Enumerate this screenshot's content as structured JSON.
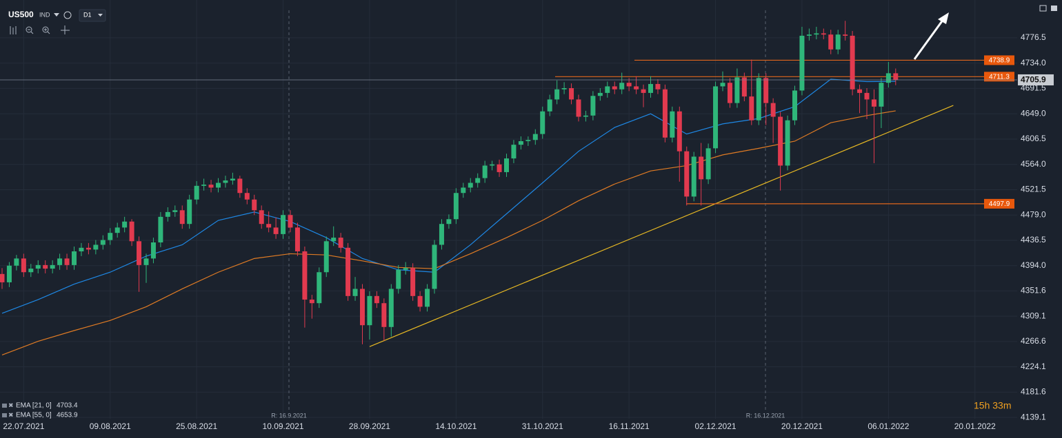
{
  "header": {
    "symbol": "US500",
    "market": "IND",
    "timeframe": "D1"
  },
  "timer": "15h 33m",
  "chart_data": {
    "type": "candlestick",
    "up_color": "#2fb67a",
    "down_color": "#e23a4f",
    "ylim": [
      4137,
      4840
    ],
    "yticks": [
      4776.5,
      {
        "value": 4734,
        "label": "4734.0"
      },
      4691.5,
      {
        "value": 4649,
        "label": "4649.0"
      },
      4606.5,
      {
        "value": 4564,
        "label": "4564.0"
      },
      4521.5,
      {
        "value": 4479,
        "label": "4479.0"
      },
      4436.5,
      {
        "value": 4394,
        "label": "4394.0"
      },
      4351.6,
      4309.1,
      4266.6,
      4224.1,
      4181.6,
      4139.1
    ],
    "x_labels": [
      "22.07.2021",
      "09.08.2021",
      "25.08.2021",
      "10.09.2021",
      "28.09.2021",
      "14.10.2021",
      "31.10.2021",
      "16.11.2021",
      "02.12.2021",
      "20.12.2021",
      "06.01.2022",
      "20.01.2022"
    ],
    "markers": [
      "R: 16.9.2021",
      "R: 16.12.2021"
    ],
    "candles": [
      [
        4380,
        4390,
        4355,
        4366
      ],
      [
        4366,
        4400,
        4358,
        4394
      ],
      [
        4394,
        4412,
        4386,
        4406
      ],
      [
        4406,
        4414,
        4375,
        4383
      ],
      [
        4383,
        4397,
        4375,
        4389
      ],
      [
        4389,
        4403,
        4381,
        4395
      ],
      [
        4395,
        4403,
        4381,
        4389
      ],
      [
        4389,
        4403,
        4381,
        4395
      ],
      [
        4395,
        4414,
        4387,
        4406
      ],
      [
        4406,
        4414,
        4387,
        4395
      ],
      [
        4395,
        4426,
        4387,
        4418
      ],
      [
        4418,
        4432,
        4410,
        4424
      ],
      [
        4424,
        4432,
        4413,
        4421
      ],
      [
        4421,
        4437,
        4413,
        4429
      ],
      [
        4429,
        4445,
        4421,
        4437
      ],
      [
        4437,
        4457,
        4429,
        4449
      ],
      [
        4449,
        4466,
        4441,
        4458
      ],
      [
        4458,
        4476,
        4450,
        4468
      ],
      [
        4468,
        4472,
        4427,
        4435
      ],
      [
        4435,
        4443,
        4350,
        4395
      ],
      [
        4395,
        4414,
        4365,
        4406
      ],
      [
        4406,
        4441,
        4398,
        4433
      ],
      [
        4433,
        4484,
        4425,
        4476
      ],
      [
        4476,
        4492,
        4468,
        4484
      ],
      [
        4484,
        4495,
        4476,
        4487
      ],
      [
        4487,
        4495,
        4456,
        4464
      ],
      [
        4464,
        4513,
        4456,
        4505
      ],
      [
        4505,
        4536,
        4497,
        4528
      ],
      [
        4528,
        4540,
        4520,
        4530
      ],
      [
        4530,
        4538,
        4517,
        4525
      ],
      [
        4525,
        4541,
        4517,
        4533
      ],
      [
        4533,
        4545,
        4525,
        4537
      ],
      [
        4537,
        4550,
        4530,
        4540
      ],
      [
        4540,
        4545,
        4508,
        4516
      ],
      [
        4516,
        4524,
        4497,
        4505
      ],
      [
        4505,
        4513,
        4479,
        4487
      ],
      [
        4487,
        4495,
        4456,
        4464
      ],
      [
        4464,
        4485,
        4450,
        4458
      ],
      [
        4458,
        4475,
        4439,
        4447
      ],
      [
        4447,
        4487,
        4439,
        4479
      ],
      [
        4479,
        4487,
        4450,
        4458
      ],
      [
        4458,
        4466,
        4410,
        4418
      ],
      [
        4418,
        4426,
        4290,
        4337
      ],
      [
        4337,
        4345,
        4305,
        4331
      ],
      [
        4331,
        4391,
        4323,
        4383
      ],
      [
        4383,
        4443,
        4375,
        4435
      ],
      [
        4435,
        4460,
        4427,
        4441
      ],
      [
        4441,
        4449,
        4416,
        4424
      ],
      [
        4424,
        4432,
        4335,
        4343
      ],
      [
        4343,
        4375,
        4335,
        4355
      ],
      [
        4355,
        4363,
        4262,
        4294
      ],
      [
        4294,
        4351,
        4270,
        4343
      ],
      [
        4343,
        4351,
        4323,
        4331
      ],
      [
        4331,
        4339,
        4268,
        4291
      ],
      [
        4291,
        4363,
        4275,
        4355
      ],
      [
        4355,
        4395,
        4347,
        4387
      ],
      [
        4387,
        4400,
        4379,
        4390
      ],
      [
        4390,
        4398,
        4335,
        4343
      ],
      [
        4343,
        4351,
        4317,
        4325
      ],
      [
        4325,
        4363,
        4317,
        4355
      ],
      [
        4355,
        4437,
        4347,
        4429
      ],
      [
        4429,
        4472,
        4421,
        4464
      ],
      [
        4464,
        4480,
        4456,
        4472
      ],
      [
        4472,
        4524,
        4464,
        4516
      ],
      [
        4516,
        4533,
        4508,
        4525
      ],
      [
        4525,
        4541,
        4517,
        4533
      ],
      [
        4533,
        4549,
        4525,
        4541
      ],
      [
        4541,
        4570,
        4533,
        4562
      ],
      [
        4562,
        4570,
        4554,
        4564
      ],
      [
        4564,
        4572,
        4543,
        4551
      ],
      [
        4551,
        4582,
        4543,
        4574
      ],
      [
        4574,
        4605,
        4566,
        4597
      ],
      [
        4597,
        4611,
        4589,
        4603
      ],
      [
        4603,
        4611,
        4595,
        4605
      ],
      [
        4605,
        4623,
        4597,
        4615
      ],
      [
        4615,
        4661,
        4607,
        4653
      ],
      [
        4653,
        4681,
        4645,
        4673
      ],
      [
        4673,
        4705,
        4665,
        4690
      ],
      [
        4690,
        4702,
        4682,
        4692
      ],
      [
        4692,
        4700,
        4665,
        4673
      ],
      [
        4673,
        4681,
        4636,
        4644
      ],
      [
        4644,
        4654,
        4636,
        4646
      ],
      [
        4646,
        4687,
        4638,
        4679
      ],
      [
        4679,
        4692,
        4671,
        4684
      ],
      [
        4684,
        4703,
        4676,
        4695
      ],
      [
        4695,
        4703,
        4682,
        4690
      ],
      [
        4690,
        4718,
        4682,
        4701
      ],
      [
        4701,
        4709,
        4687,
        4695
      ],
      [
        4695,
        4712,
        4682,
        4690
      ],
      [
        4690,
        4698,
        4660,
        4684
      ],
      [
        4684,
        4712,
        4676,
        4699
      ],
      [
        4699,
        4707,
        4682,
        4690
      ],
      [
        4690,
        4698,
        4601,
        4609
      ],
      [
        4609,
        4661,
        4601,
        4653
      ],
      [
        4653,
        4661,
        4535,
        4586
      ],
      [
        4586,
        4594,
        4495,
        4510
      ],
      [
        4510,
        4585,
        4502,
        4577
      ],
      [
        4577,
        4600,
        4495,
        4539
      ],
      [
        4539,
        4599,
        4531,
        4591
      ],
      [
        4591,
        4703,
        4583,
        4695
      ],
      [
        4695,
        4720,
        4687,
        4701
      ],
      [
        4701,
        4709,
        4659,
        4667
      ],
      [
        4667,
        4725,
        4659,
        4710
      ],
      [
        4710,
        4718,
        4670,
        4678
      ],
      [
        4678,
        4740,
        4630,
        4638
      ],
      [
        4638,
        4717,
        4630,
        4709
      ],
      [
        4709,
        4717,
        4630,
        4667
      ],
      [
        4667,
        4675,
        4600,
        4644
      ],
      [
        4644,
        4652,
        4520,
        4562
      ],
      [
        4562,
        4646,
        4554,
        4638
      ],
      [
        4638,
        4696,
        4630,
        4688
      ],
      [
        4688,
        4795,
        4680,
        4780
      ],
      [
        4780,
        4792,
        4772,
        4782
      ],
      [
        4782,
        4795,
        4774,
        4784
      ],
      [
        4784,
        4792,
        4774,
        4782
      ],
      [
        4782,
        4790,
        4749,
        4757
      ],
      [
        4757,
        4790,
        4749,
        4782
      ],
      [
        4782,
        4805,
        4772,
        4780
      ],
      [
        4780,
        4788,
        4680,
        4690
      ],
      [
        4690,
        4698,
        4650,
        4684
      ],
      [
        4684,
        4692,
        4640,
        4673
      ],
      [
        4673,
        4690,
        4566,
        4661
      ],
      [
        4661,
        4709,
        4625,
        4701
      ],
      [
        4701,
        4736,
        4693,
        4717
      ],
      [
        4717,
        4725,
        4697,
        4705.9
      ]
    ],
    "series": [
      {
        "name": "EMA [21, 0]",
        "color": "#1e88e5",
        "x": [
          0,
          5,
          10,
          15,
          20,
          25,
          30,
          35,
          40,
          45,
          50,
          55,
          60,
          65,
          70,
          75,
          80,
          85,
          90,
          95,
          100,
          105,
          110,
          115,
          120,
          124
        ],
        "values": [
          4314,
          4337,
          4363,
          4383,
          4410,
          4429,
          4470,
          4484,
          4468,
          4441,
          4406,
          4387,
          4383,
          4429,
          4481,
          4533,
          4586,
          4626,
          4649,
          4615,
          4632,
          4641,
          4661,
          4707,
          4703,
          4703.4
        ]
      },
      {
        "name": "EMA [55, 0]",
        "color": "#e07b24",
        "x": [
          0,
          5,
          10,
          15,
          20,
          25,
          30,
          35,
          40,
          45,
          50,
          55,
          60,
          65,
          70,
          75,
          80,
          85,
          90,
          95,
          100,
          105,
          110,
          115,
          120,
          124
        ],
        "values": [
          4244,
          4267,
          4285,
          4302,
          4325,
          4355,
          4383,
          4406,
          4414,
          4412,
          4402,
          4391,
          4389,
          4414,
          4441,
          4470,
          4503,
          4531,
          4553,
          4562,
          4580,
          4591,
          4603,
          4634,
          4646,
          4653.9
        ]
      }
    ],
    "trendline": {
      "color": "#e8b923",
      "x": [
        51,
        132
      ],
      "values": [
        4258,
        4663
      ]
    },
    "levels": [
      {
        "value": 4738.9,
        "label": "4738.9"
      },
      {
        "value": 4711.3,
        "label": "4711.3"
      },
      {
        "value": 4497.9,
        "label": "4497.9"
      }
    ],
    "level_color": "#e0661c"
  }
}
